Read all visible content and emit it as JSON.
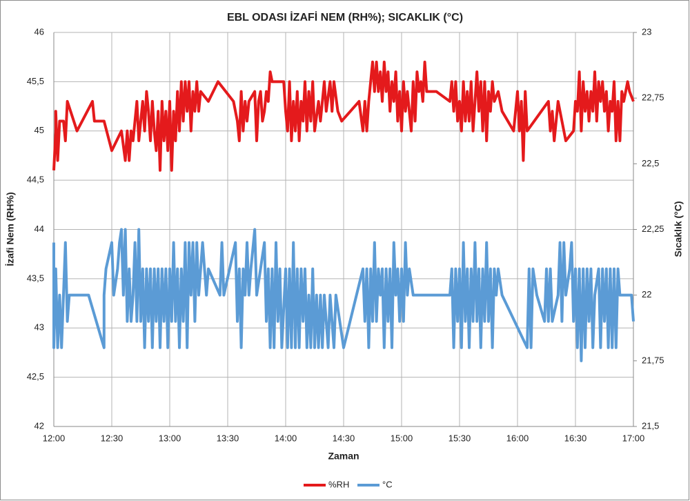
{
  "chart_data": {
    "type": "line",
    "title": "EBL ODASI İZAFİ NEM (RH%); SICAKLIK (°C)",
    "xlabel": "Zaman",
    "ylabel": "İzafi Nem (RH%)",
    "y2label": "Sıcaklık (°C)",
    "xlim": [
      "12:00",
      "17:00"
    ],
    "xticks": [
      "12:00",
      "12:30",
      "13:00",
      "13:30",
      "14:00",
      "14:30",
      "15:00",
      "15:30",
      "16:00",
      "16:30",
      "17:00"
    ],
    "ylim": [
      42,
      46
    ],
    "yticks": [
      42,
      {
        "value": 42.5,
        "label": "42,5"
      },
      43,
      {
        "value": 43.5,
        "label": "43,5"
      },
      44,
      {
        "value": 44.5,
        "label": "44,5"
      },
      45,
      {
        "value": 45.5,
        "label": "45,5"
      },
      46
    ],
    "y2lim": [
      21.5,
      23
    ],
    "y2ticks": [
      {
        "value": 21.5,
        "label": "21,5"
      },
      {
        "value": 21.75,
        "label": "21,75"
      },
      22,
      {
        "value": 22.25,
        "label": "22,25"
      },
      {
        "value": 22.5,
        "label": "22,5"
      },
      {
        "value": 22.75,
        "label": "22,75"
      },
      23
    ],
    "grid": true,
    "legend": "bottom",
    "series": [
      {
        "name": "%RH",
        "color": "#e41a1c",
        "x": [
          "12:00",
          "12:01",
          "12:01",
          "12:02",
          "12:03",
          "12:05",
          "12:06",
          "12:07",
          "12:12",
          "12:20",
          "12:21",
          "12:26",
          "12:30",
          "12:35",
          "12:37",
          "12:38",
          "12:39",
          "12:40",
          "12:41",
          "12:43",
          "12:44",
          "12:46",
          "12:47",
          "12:48",
          "12:49",
          "12:50",
          "12:51",
          "12:52",
          "12:53",
          "12:54",
          "12:55",
          "12:56",
          "12:57",
          "12:58",
          "12:59",
          "13:00",
          "13:01",
          "13:02",
          "13:03",
          "13:04",
          "13:05",
          "13:06",
          "13:07",
          "13:08",
          "13:09",
          "13:10",
          "13:11",
          "13:12",
          "13:13",
          "13:14",
          "13:15",
          "13:16",
          "13:20",
          "13:25",
          "13:33",
          "13:35",
          "13:36",
          "13:37",
          "13:38",
          "13:39",
          "13:40",
          "13:41",
          "13:44",
          "13:45",
          "13:46",
          "13:47",
          "13:48",
          "13:49",
          "13:50",
          "13:51",
          "13:52",
          "13:53",
          "13:59",
          "14:00",
          "14:01",
          "14:02",
          "14:03",
          "14:04",
          "14:05",
          "14:06",
          "14:07",
          "14:08",
          "14:09",
          "14:10",
          "14:11",
          "14:12",
          "14:13",
          "14:14",
          "14:15",
          "14:17",
          "14:18",
          "14:20",
          "14:21",
          "14:23",
          "14:24",
          "14:25",
          "14:27",
          "14:29",
          "14:38",
          "14:40",
          "14:41",
          "14:42",
          "14:43",
          "14:44",
          "14:45",
          "14:46",
          "14:47",
          "14:48",
          "14:49",
          "14:50",
          "14:51",
          "14:52",
          "14:53",
          "14:54",
          "14:55",
          "14:56",
          "14:57",
          "14:58",
          "14:59",
          "15:00",
          "15:01",
          "15:02",
          "15:03",
          "15:05",
          "15:06",
          "15:07",
          "15:08",
          "15:09",
          "15:10",
          "15:11",
          "15:12",
          "15:13",
          "15:18",
          "15:25",
          "15:26",
          "15:27",
          "15:28",
          "15:29",
          "15:30",
          "15:31",
          "15:32",
          "15:33",
          "15:34",
          "15:35",
          "15:36",
          "15:37",
          "15:38",
          "15:39",
          "15:40",
          "15:41",
          "15:42",
          "15:43",
          "15:44",
          "15:45",
          "15:46",
          "15:47",
          "15:48",
          "15:50",
          "15:52",
          "15:58",
          "16:00",
          "16:01",
          "16:02",
          "16:03",
          "16:04",
          "16:05",
          "16:16",
          "16:17",
          "16:18",
          "16:19",
          "16:21",
          "16:23",
          "16:25",
          "16:29",
          "16:30",
          "16:31",
          "16:32",
          "16:33",
          "16:34",
          "16:35",
          "16:36",
          "16:37",
          "16:38",
          "16:39",
          "16:40",
          "16:41",
          "16:42",
          "16:43",
          "16:44",
          "16:45",
          "16:46",
          "16:47",
          "16:48",
          "16:49",
          "16:50",
          "16:51",
          "16:52",
          "16:53",
          "16:54",
          "16:55",
          "16:57",
          "16:58",
          "17:00"
        ],
        "values": [
          44.6,
          45,
          45.2,
          44.7,
          45.1,
          45.1,
          44.9,
          45.3,
          45,
          45.3,
          45.1,
          45.1,
          44.8,
          45,
          44.7,
          45,
          44.7,
          45,
          44.9,
          45.3,
          44.9,
          45.3,
          45,
          45.4,
          45.2,
          44.9,
          45.3,
          45,
          44.8,
          45.2,
          44.6,
          45.3,
          44.9,
          45.2,
          44.8,
          45.3,
          44.6,
          45.2,
          44.9,
          45.4,
          45,
          45.5,
          45.1,
          45.5,
          45.2,
          45.5,
          45,
          45.4,
          45.2,
          45.5,
          45.2,
          45.4,
          45.3,
          45.5,
          45.3,
          45.1,
          44.9,
          45.4,
          45,
          45.3,
          45.1,
          45.3,
          45.4,
          44.9,
          45.3,
          45.4,
          45.1,
          45.2,
          45.4,
          45.3,
          45.6,
          45.5,
          45.5,
          45.2,
          45,
          45.5,
          44.9,
          45.3,
          45,
          45.4,
          44.9,
          45.3,
          45.1,
          45.5,
          45,
          45.4,
          45.1,
          45.5,
          45,
          45.3,
          45.1,
          45.5,
          45.2,
          45.5,
          45.2,
          45.5,
          45.2,
          45.1,
          45.3,
          45,
          45.3,
          45,
          45.3,
          45.5,
          45.7,
          45.4,
          45.7,
          45.4,
          45.6,
          45.3,
          45.7,
          45.4,
          45.6,
          45.2,
          45.5,
          45.3,
          45.6,
          45.1,
          45.4,
          45,
          45.5,
          45.2,
          45.4,
          45,
          45.5,
          45.1,
          45.6,
          45.4,
          45.5,
          45.3,
          45.7,
          45.4,
          45.4,
          45.3,
          45.5,
          45.2,
          45.5,
          45.1,
          45.3,
          45,
          45.5,
          45.1,
          45.4,
          45.1,
          45.5,
          45,
          45.3,
          45.6,
          45.2,
          45.5,
          45,
          45.5,
          44.9,
          45.4,
          45.2,
          45.5,
          45.3,
          45.4,
          45.2,
          45,
          45.4,
          45,
          45.3,
          44.7,
          45.4,
          45,
          45.3,
          45,
          45.2,
          44.9,
          45.3,
          45.1,
          44.9,
          45,
          45.3,
          45.2,
          45.6,
          45,
          45.5,
          45.2,
          45.4,
          45.1,
          45.4,
          45.2,
          45.6,
          45.1,
          45.5,
          45.3,
          45.5,
          45.2,
          45.4,
          45,
          45.3,
          45.2,
          45.5,
          44.9,
          45.3,
          44.9,
          45.4,
          45.3,
          45.5,
          45.4,
          45.3
        ]
      },
      {
        "name": "°C",
        "color": "#5b9bd5",
        "axis": "y2",
        "x": [
          "12:00",
          "12:00",
          "12:01",
          "12:02",
          "12:03",
          "12:04",
          "12:06",
          "12:07",
          "12:08",
          "12:18",
          "12:26",
          "12:26",
          "12:27",
          "12:30",
          "12:31",
          "12:33",
          "12:34",
          "12:35",
          "12:36",
          "12:37",
          "12:38",
          "12:39",
          "12:40",
          "12:41",
          "12:42",
          "12:43",
          "12:44",
          "12:45",
          "12:46",
          "12:47",
          "12:48",
          "12:49",
          "12:50",
          "12:51",
          "12:52",
          "12:53",
          "12:54",
          "12:55",
          "12:56",
          "12:57",
          "12:58",
          "12:59",
          "13:00",
          "13:01",
          "13:02",
          "13:03",
          "13:04",
          "13:05",
          "13:06",
          "13:07",
          "13:08",
          "13:09",
          "13:10",
          "13:11",
          "13:12",
          "13:13",
          "13:14",
          "13:15",
          "13:17",
          "13:19",
          "13:20",
          "13:26",
          "13:27",
          "13:28",
          "13:34",
          "13:35",
          "13:36",
          "13:37",
          "13:38",
          "13:39",
          "13:40",
          "13:41",
          "13:42",
          "13:44",
          "13:45",
          "13:47",
          "13:49",
          "13:50",
          "13:51",
          "13:52",
          "13:53",
          "13:54",
          "13:55",
          "13:56",
          "13:57",
          "13:58",
          "14:00",
          "14:01",
          "14:02",
          "14:03",
          "14:04",
          "14:05",
          "14:06",
          "14:07",
          "14:08",
          "14:09",
          "14:10",
          "14:11",
          "14:12",
          "14:13",
          "14:14",
          "14:15",
          "14:16",
          "14:17",
          "14:18",
          "14:19",
          "14:20",
          "14:22",
          "14:23",
          "14:25",
          "14:26",
          "14:30",
          "14:40",
          "14:41",
          "14:42",
          "14:43",
          "14:44",
          "14:45",
          "14:46",
          "14:47",
          "14:48",
          "14:49",
          "14:50",
          "14:51",
          "14:52",
          "14:53",
          "14:54",
          "14:55",
          "14:56",
          "14:57",
          "14:58",
          "14:59",
          "15:00",
          "15:01",
          "15:02",
          "15:03",
          "15:04",
          "15:06",
          "15:10",
          "15:25",
          "15:26",
          "15:27",
          "15:28",
          "15:29",
          "15:30",
          "15:31",
          "15:32",
          "15:33",
          "15:34",
          "15:35",
          "15:36",
          "15:37",
          "15:38",
          "15:39",
          "15:40",
          "15:41",
          "15:42",
          "15:43",
          "15:44",
          "15:45",
          "15:46",
          "15:47",
          "15:48",
          "15:49",
          "15:50",
          "15:52",
          "16:05",
          "16:06",
          "16:07",
          "16:08",
          "16:10",
          "16:14",
          "16:15",
          "16:16",
          "16:17",
          "16:18",
          "16:21",
          "16:22",
          "16:23",
          "16:24",
          "16:25",
          "16:27",
          "16:28",
          "16:29",
          "16:30",
          "16:31",
          "16:32",
          "16:33",
          "16:34",
          "16:35",
          "16:36",
          "16:37",
          "16:38",
          "16:39",
          "16:40",
          "16:42",
          "16:43",
          "16:44",
          "16:45",
          "16:46",
          "16:47",
          "16:48",
          "16:49",
          "16:50",
          "16:51",
          "16:52",
          "16:53",
          "16:55",
          "16:59",
          "17:00"
        ],
        "values": [
          22.2,
          21.8,
          22.1,
          21.8,
          22,
          21.8,
          22.2,
          21.9,
          22,
          22,
          21.8,
          22,
          22.1,
          22.2,
          22,
          22.1,
          22.2,
          22.25,
          22,
          22.25,
          21.9,
          22.1,
          21.9,
          22,
          22.2,
          21.9,
          22.25,
          21.9,
          22.1,
          21.8,
          22.1,
          21.9,
          22.1,
          21.8,
          22.1,
          21.9,
          22.1,
          21.8,
          22.1,
          21.9,
          22.1,
          21.8,
          22.1,
          21.9,
          22.2,
          21.9,
          22.1,
          21.8,
          22.1,
          21.9,
          22.2,
          21.8,
          22.2,
          22,
          22.2,
          21.9,
          22.2,
          22,
          22.2,
          22,
          22.1,
          22,
          22.2,
          22,
          22.2,
          21.9,
          22.1,
          21.8,
          22.1,
          22,
          22.2,
          22,
          22.1,
          22.25,
          22,
          22.1,
          22.2,
          21.9,
          22.1,
          21.8,
          22.1,
          21.8,
          22.2,
          21.9,
          22.1,
          21.8,
          22.1,
          21.8,
          22.1,
          21.8,
          22.2,
          21.8,
          22.1,
          21.8,
          22.1,
          21.9,
          22.1,
          21.8,
          22,
          21.8,
          22.1,
          21.8,
          22,
          21.8,
          22,
          21.8,
          22,
          21.8,
          22,
          21.8,
          22,
          21.8,
          22.1,
          21.9,
          22.1,
          21.8,
          22.1,
          21.9,
          22.2,
          21.9,
          22.1,
          22,
          22.1,
          21.8,
          22.1,
          21.9,
          22.1,
          21.8,
          22.2,
          22,
          22.1,
          21.9,
          22.1,
          21.9,
          22.2,
          22,
          22.1,
          22,
          22,
          22,
          22.1,
          21.8,
          22.1,
          21.9,
          22.1,
          21.8,
          22.2,
          21.9,
          22.1,
          21.8,
          22.1,
          21.9,
          22.2,
          21.9,
          22.1,
          21.8,
          22.1,
          21.9,
          22.2,
          21.9,
          22.1,
          21.8,
          22.1,
          22,
          22.1,
          22,
          21.8,
          22.1,
          21.8,
          22.1,
          22,
          21.9,
          22.1,
          21.9,
          22.1,
          21.9,
          22,
          22.2,
          21.9,
          22.2,
          22,
          22.1,
          22.2,
          21.9,
          22.1,
          21.8,
          22.1,
          21.75,
          22.1,
          21.8,
          22.1,
          21.9,
          22.1,
          21.8,
          22,
          22.1,
          21.8,
          22.1,
          21.9,
          22.1,
          21.8,
          22.1,
          21.8,
          22.1,
          21.8,
          22.1,
          22,
          22,
          22,
          21.9
        ]
      }
    ]
  }
}
